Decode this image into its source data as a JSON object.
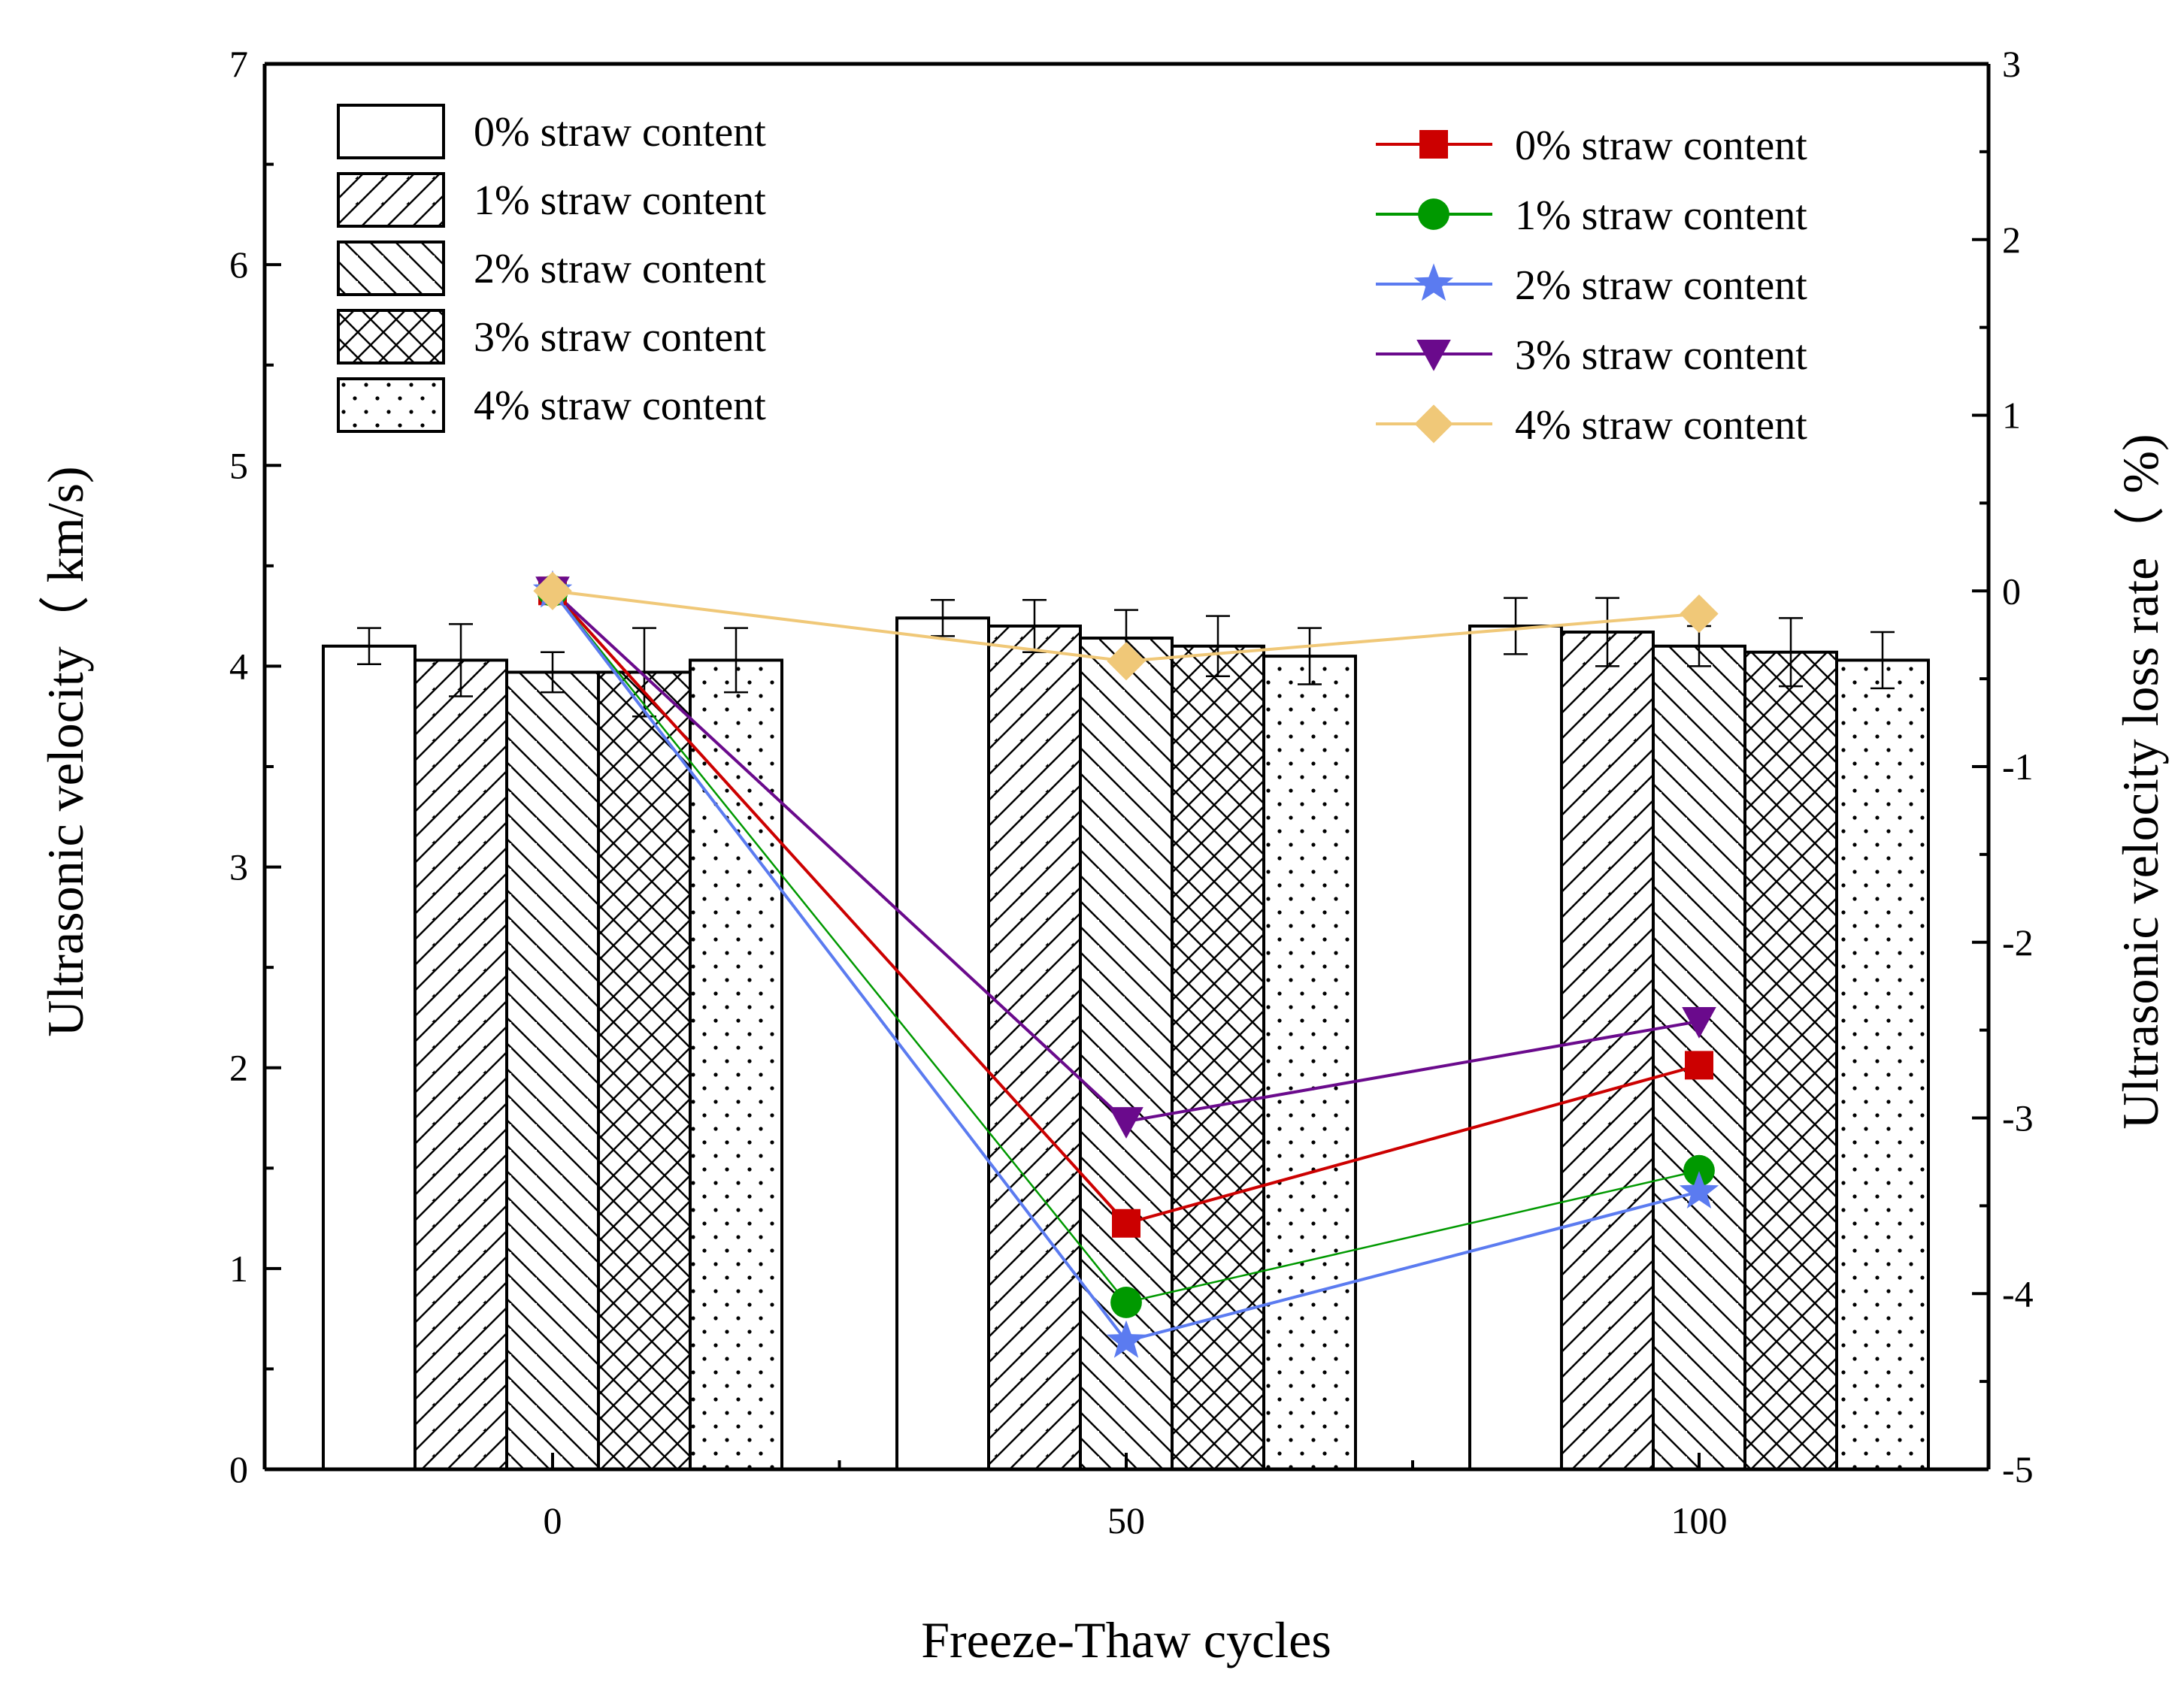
{
  "chart_data": {
    "type": "bar",
    "xlabel": "Freeze-Thaw cycles",
    "ylabel": "Ultrasonic velocity（ km/s)",
    "y2label": "Ultrasonic velocity loss rate（ %)",
    "categories": [
      "0",
      "50",
      "100"
    ],
    "ylim": [
      0,
      7
    ],
    "yticks": [
      "0",
      "1",
      "2",
      "3",
      "4",
      "5",
      "6",
      "7"
    ],
    "y2lim": [
      -5,
      3
    ],
    "y2ticks": [
      "-5",
      "-4",
      "-3",
      "-2",
      "-1",
      "0",
      "1",
      "2",
      "3"
    ],
    "bar_series": [
      {
        "name": "0% straw content",
        "pattern": "none",
        "values": [
          4.1,
          4.24,
          4.2
        ],
        "errors": [
          0.09,
          0.09,
          0.14
        ]
      },
      {
        "name": "1% straw content",
        "pattern": "forward-diagonal",
        "values": [
          4.03,
          4.2,
          4.17
        ],
        "errors": [
          0.18,
          0.13,
          0.17
        ]
      },
      {
        "name": "2% straw content",
        "pattern": "back-diagonal",
        "values": [
          3.97,
          4.14,
          4.1
        ],
        "errors": [
          0.1,
          0.14,
          0.1
        ]
      },
      {
        "name": "3% straw content",
        "pattern": "crosshatch",
        "values": [
          3.97,
          4.1,
          4.07
        ],
        "errors": [
          0.22,
          0.15,
          0.17
        ]
      },
      {
        "name": "4% straw content",
        "pattern": "dots",
        "values": [
          4.03,
          4.05,
          4.03
        ],
        "errors": [
          0.16,
          0.14,
          0.14
        ]
      }
    ],
    "line_series": [
      {
        "name": "0% straw content",
        "color": "#CC0000",
        "marker": "square",
        "values": [
          0,
          -3.6,
          -2.7
        ]
      },
      {
        "name": "1% straw content",
        "color": "#009900",
        "marker": "circle",
        "values": [
          0,
          -4.05,
          -3.3
        ]
      },
      {
        "name": "2% straw content",
        "color": "#5B7BF0",
        "marker": "star",
        "values": [
          0,
          -4.27,
          -3.42
        ]
      },
      {
        "name": "3% straw content",
        "color": "#6A0A8C",
        "marker": "triangle-down",
        "values": [
          0,
          -3.02,
          -2.45
        ]
      },
      {
        "name": "4% straw content",
        "color": "#F0C878",
        "marker": "diamond",
        "values": [
          0,
          -0.4,
          -0.13
        ]
      }
    ],
    "legend_bars_position": "top-left",
    "legend_lines_position": "top-right"
  }
}
